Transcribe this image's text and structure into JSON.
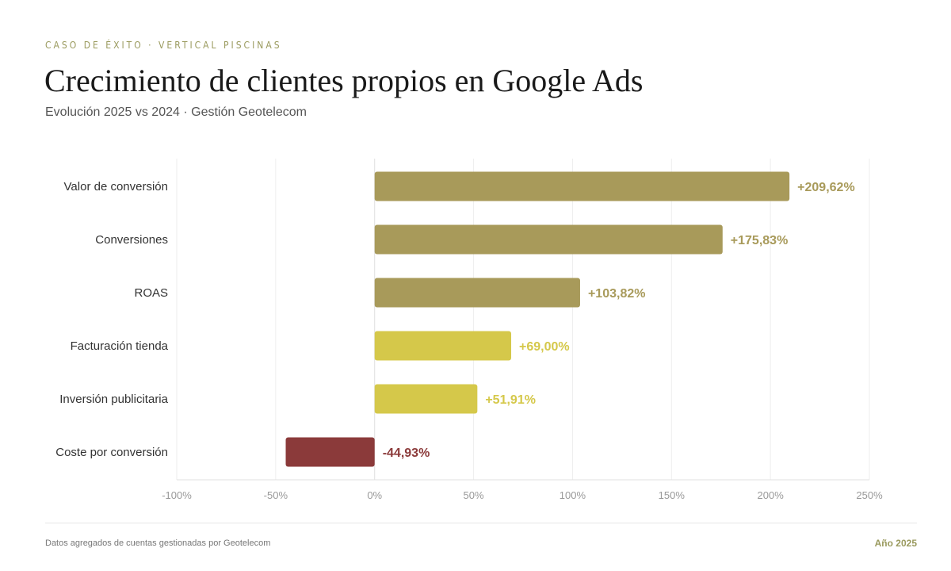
{
  "header": {
    "eyebrow": "CASO DE ÉXITO · VERTICAL PISCINAS",
    "title": "Crecimiento de clientes propios en Google Ads",
    "subtitle": "Evolución 2025 vs 2024 · Gestión Geotelecom"
  },
  "footer": {
    "source": "Datos agregados de cuentas gestionadas por Geotelecom",
    "year": "Año 2025"
  },
  "colors": {
    "dark_olive": "#a89a5a",
    "yellow": "#d5c84a",
    "red": "#8b3a3a"
  },
  "chart_data": {
    "type": "bar",
    "orientation": "horizontal",
    "categories": [
      "Valor de conversión",
      "Conversiones",
      "ROAS",
      "Facturación tienda",
      "Inversión publicitaria",
      "Coste por conversión"
    ],
    "values": [
      209.62,
      175.83,
      103.82,
      69.0,
      51.91,
      -44.93
    ],
    "data_labels": [
      "+209,62%",
      "+175,83%",
      "+103,82%",
      "+69,00%",
      "+51,91%",
      "-44,93%"
    ],
    "bar_colors": [
      "#a89a5a",
      "#a89a5a",
      "#a89a5a",
      "#d5c84a",
      "#d5c84a",
      "#8b3a3a"
    ],
    "xlim": [
      -100,
      250
    ],
    "x_ticks": [
      -100,
      -50,
      0,
      50,
      100,
      150,
      200,
      250
    ],
    "x_tick_labels": [
      "-100%",
      "-50%",
      "0%",
      "50%",
      "100%",
      "150%",
      "200%",
      "250%"
    ],
    "grid": true,
    "legend": "none"
  }
}
